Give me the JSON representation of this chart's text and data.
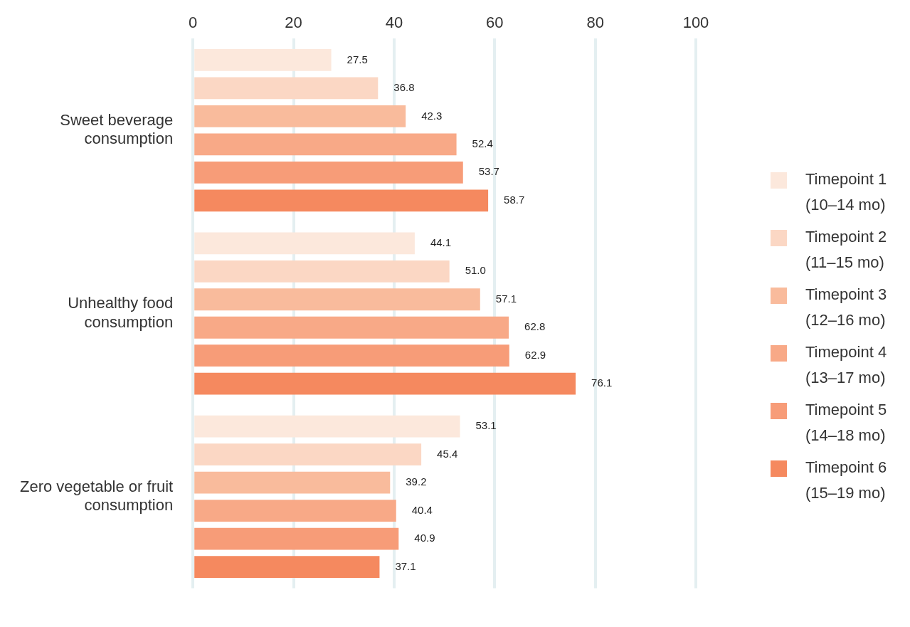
{
  "chart_data": {
    "type": "bar",
    "orientation": "horizontal",
    "categories": [
      "Sweet beverage consumption",
      "Unhealthy food consumption",
      "Zero vegetable or fruit consumption"
    ],
    "series": [
      {
        "name": "Timepoint 1 (10–14 mo)",
        "color": "#fce8dc",
        "values": [
          27.5,
          44.1,
          53.1
        ]
      },
      {
        "name": "Timepoint 2 (11–15 mo)",
        "color": "#fbd7c4",
        "values": [
          36.8,
          51.0,
          45.4
        ]
      },
      {
        "name": "Timepoint 3 (12–16 mo)",
        "color": "#f9bb9c",
        "values": [
          42.3,
          57.1,
          39.2
        ]
      },
      {
        "name": "Timepoint 4 (13–17 mo)",
        "color": "#f8a987",
        "values": [
          52.4,
          62.8,
          40.4
        ]
      },
      {
        "name": "Timepoint 5 (14–18 mo)",
        "color": "#f79c78",
        "values": [
          53.7,
          62.9,
          40.9
        ]
      },
      {
        "name": "Timepoint 6 (15–19 mo)",
        "color": "#f5895f",
        "values": [
          58.7,
          76.1,
          37.1
        ]
      }
    ],
    "value_labels": [
      [
        "27.5",
        "44.1",
        "53.1"
      ],
      [
        "36.8",
        "51.0",
        "45.4"
      ],
      [
        "42.3",
        "57.1",
        "39.2"
      ],
      [
        "52.4",
        "62.8",
        "40.4"
      ],
      [
        "53.7",
        "62.9",
        "40.9"
      ],
      [
        "58.7",
        "76.1",
        "37.1"
      ]
    ],
    "xlim": [
      0,
      100
    ],
    "xticks": [
      0,
      20,
      40,
      60,
      80,
      100
    ],
    "grid": "x",
    "legend": "right"
  }
}
